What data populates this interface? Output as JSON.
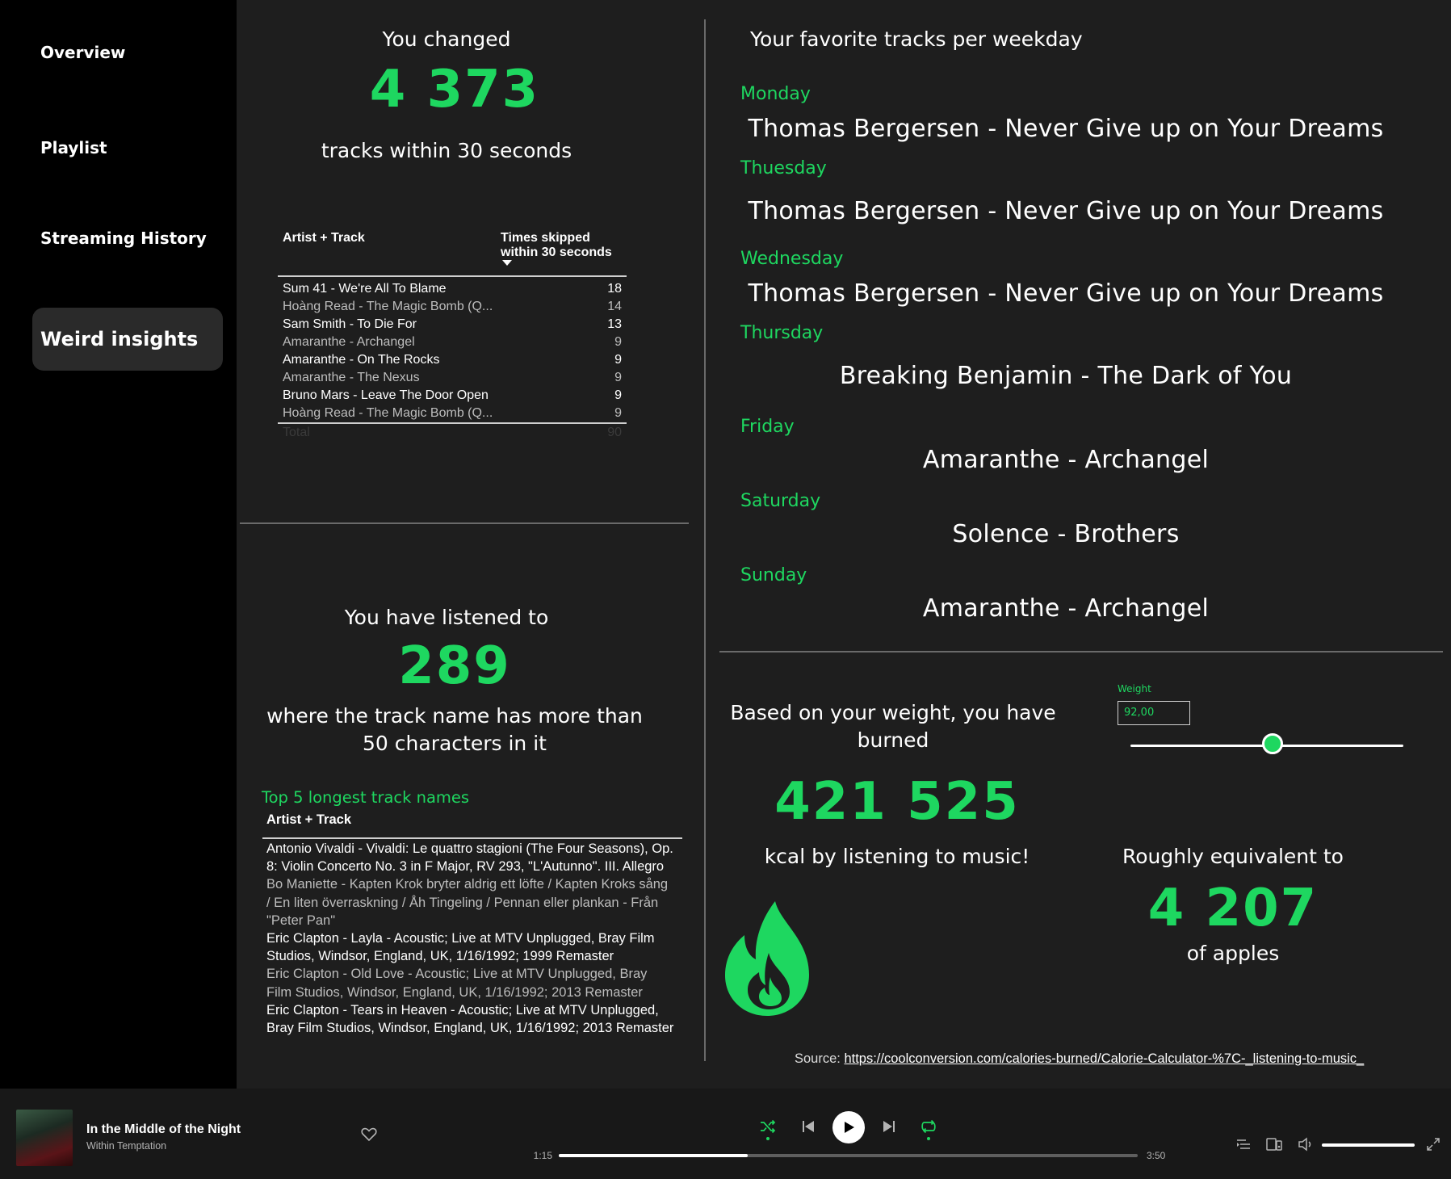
{
  "sidebar": {
    "items": [
      {
        "label": "Overview"
      },
      {
        "label": "Playlist"
      },
      {
        "label": "Streaming History"
      },
      {
        "label": "Weird insights"
      }
    ]
  },
  "skips": {
    "heading": "You changed",
    "value": "4 373",
    "subtitle": "tracks within 30 seconds",
    "table": {
      "col1": "Artist + Track",
      "col2_line1": "Times skipped",
      "col2_line2": "within 30 seconds",
      "rows": [
        {
          "track": "Sum 41 - We're All To Blame",
          "count": "18"
        },
        {
          "track": "Hoàng Read - The Magic Bomb (Q...",
          "count": "14"
        },
        {
          "track": "Sam Smith - To Die For",
          "count": "13"
        },
        {
          "track": "Amaranthe - Archangel",
          "count": "9"
        },
        {
          "track": "Amaranthe - On The Rocks",
          "count": "9"
        },
        {
          "track": "Amaranthe - The Nexus",
          "count": "9"
        },
        {
          "track": "Bruno Mars - Leave The Door Open",
          "count": "9"
        },
        {
          "track": "Hoàng Read - The Magic Bomb (Q...",
          "count": "9"
        }
      ],
      "total_label": "Total",
      "total_value": "90"
    }
  },
  "long_names": {
    "heading": "You have listened to",
    "value": "289",
    "subtitle_line1": "where the track name has more than",
    "subtitle_line2": "50 characters in it",
    "list_title": "Top 5 longest track names",
    "col": "Artist + Track",
    "items": [
      "Antonio Vivaldi - Vivaldi: Le quattro stagioni (The Four Seasons), Op. 8: Violin Concerto No. 3 in F Major, RV 293, \"L'Autunno\". III. Allegro",
      "Bo Maniette - Kapten Krok bryter aldrig ett löfte / Kapten Kroks sång / En liten överraskning / Åh Tingeling / Pennan eller plankan - Från \"Peter Pan\"",
      "Eric Clapton - Layla - Acoustic; Live at MTV Unplugged, Bray Film Studios, Windsor, England, UK, 1/16/1992; 1999 Remaster",
      "Eric Clapton - Old Love - Acoustic; Live at MTV Unplugged, Bray Film Studios, Windsor, England, UK, 1/16/1992; 2013 Remaster",
      "Eric Clapton - Tears in Heaven - Acoustic; Live at MTV Unplugged, Bray Film Studios, Windsor, England, UK, 1/16/1992; 2013 Remaster"
    ]
  },
  "weekday": {
    "title": "Your favorite tracks per weekday",
    "days": [
      {
        "day": "Monday",
        "track": "Thomas Bergersen - Never Give up on Your Dreams"
      },
      {
        "day": "Thuesday",
        "track": "Thomas Bergersen - Never Give up on Your Dreams"
      },
      {
        "day": "Wednesday",
        "track": "Thomas Bergersen - Never Give up on Your Dreams"
      },
      {
        "day": "Thursday",
        "track": "Breaking Benjamin - The Dark of You"
      },
      {
        "day": "Friday",
        "track": "Amaranthe - Archangel"
      },
      {
        "day": "Saturday",
        "track": "Solence - Brothers"
      },
      {
        "day": "Sunday",
        "track": "Amaranthe - Archangel"
      }
    ]
  },
  "calories": {
    "heading_line1": "Based on your weight, you have",
    "heading_line2": "burned",
    "value": "421 525",
    "subtitle": "kcal by listening to music!",
    "weight_label": "Weight",
    "weight_value": "92,00",
    "weight_slider_fraction": 0.52,
    "equiv_heading": "Roughly equivalent to",
    "equiv_value": "4 207",
    "equiv_subtitle": "of apples",
    "source_label": "Source: ",
    "source_link": "https://coolconversion.com/calories-burned/Calorie-Calculator-%7C-_listening-to-music_"
  },
  "player": {
    "track_title": "In the Middle of the Night",
    "artist": "Within Temptation",
    "elapsed": "1:15",
    "duration": "3:50",
    "progress_fraction": 0.326
  },
  "colors": {
    "accent": "#1ed760",
    "background": "#1e1e1e",
    "sidebar": "#000000"
  }
}
